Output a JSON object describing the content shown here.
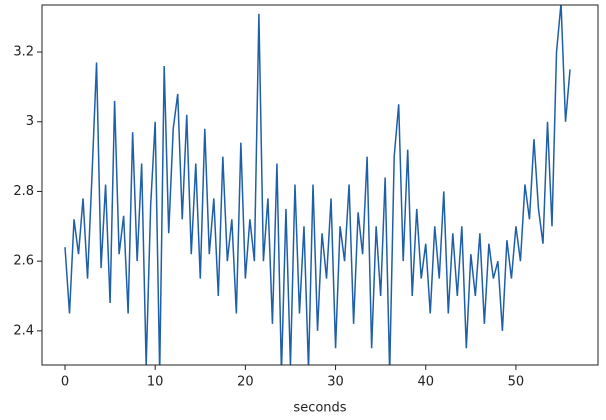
{
  "chart_data": {
    "type": "line",
    "x_label": "seconds",
    "x": [
      0,
      0.5,
      1,
      1.5,
      2,
      2.5,
      3,
      3.5,
      4,
      4.5,
      5,
      5.5,
      6,
      6.5,
      7,
      7.5,
      8,
      8.5,
      9,
      9.5,
      10,
      10.5,
      11,
      11.5,
      12,
      12.5,
      13,
      13.5,
      14,
      14.5,
      15,
      15.5,
      16,
      16.5,
      17,
      17.5,
      18,
      18.5,
      19,
      19.5,
      20,
      20.5,
      21,
      21.5,
      22,
      22.5,
      23,
      23.5,
      24,
      24.5,
      25,
      25.5,
      26,
      26.5,
      27,
      27.5,
      28,
      28.5,
      29,
      29.5,
      30,
      30.5,
      31,
      31.5,
      32,
      32.5,
      33,
      33.5,
      34,
      34.5,
      35,
      35.5,
      36,
      36.5,
      37,
      37.5,
      38,
      38.5,
      39,
      39.5,
      40,
      40.5,
      41,
      41.5,
      42,
      42.5,
      43,
      43.5,
      44,
      44.5,
      45,
      45.5,
      46,
      46.5,
      47,
      47.5,
      48,
      48.5,
      49,
      49.5,
      50,
      50.5,
      51,
      51.5,
      52,
      52.5,
      53,
      53.5,
      54,
      54.5,
      55,
      55.5,
      56
    ],
    "series": [
      {
        "color": "#1f5fa8",
        "values": [
          2.64,
          2.45,
          2.72,
          2.62,
          2.78,
          2.55,
          2.85,
          3.17,
          2.58,
          2.82,
          2.48,
          3.06,
          2.62,
          2.73,
          2.45,
          2.97,
          2.6,
          2.88,
          2.3,
          2.76,
          3.0,
          2.28,
          3.16,
          2.68,
          2.98,
          3.08,
          2.72,
          3.02,
          2.62,
          2.88,
          2.55,
          2.98,
          2.62,
          2.78,
          2.5,
          2.9,
          2.6,
          2.72,
          2.45,
          2.94,
          2.55,
          2.72,
          2.6,
          3.31,
          2.6,
          2.78,
          2.42,
          2.88,
          2.28,
          2.75,
          2.3,
          2.82,
          2.45,
          2.7,
          2.29,
          2.82,
          2.4,
          2.68,
          2.55,
          2.78,
          2.35,
          2.7,
          2.6,
          2.82,
          2.42,
          2.74,
          2.62,
          2.9,
          2.35,
          2.7,
          2.5,
          2.84,
          2.28,
          2.9,
          3.05,
          2.6,
          2.92,
          2.5,
          2.75,
          2.55,
          2.65,
          2.45,
          2.7,
          2.55,
          2.8,
          2.45,
          2.68,
          2.5,
          2.7,
          2.35,
          2.62,
          2.5,
          2.68,
          2.42,
          2.65,
          2.55,
          2.6,
          2.4,
          2.66,
          2.55,
          2.7,
          2.6,
          2.82,
          2.72,
          2.95,
          2.75,
          2.65,
          3.0,
          2.7,
          3.2,
          3.34,
          3.0,
          3.15
        ]
      }
    ],
    "xlim": [
      -2.55,
      59.1
    ],
    "xticks": [
      0,
      10,
      20,
      30,
      40,
      50
    ],
    "ylim": [
      2.302,
      3.335
    ],
    "yticks": [
      2.4,
      2.6,
      2.8,
      3.0,
      3.2
    ]
  }
}
